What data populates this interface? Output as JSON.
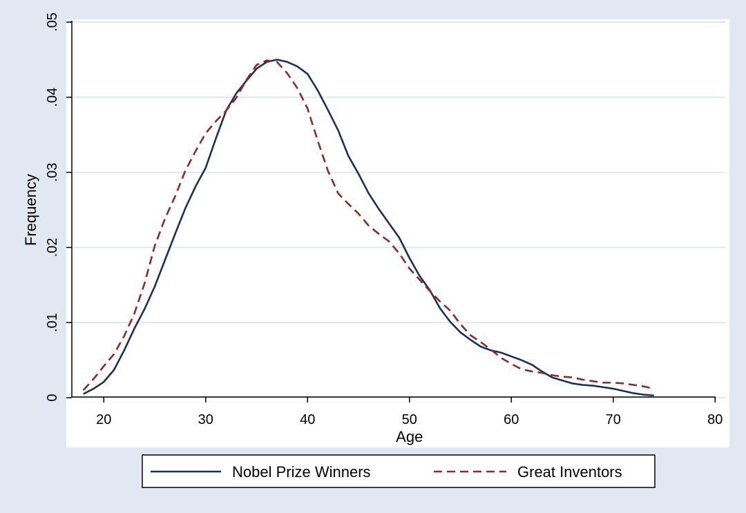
{
  "chart_data": {
    "type": "line",
    "title": "",
    "xlabel": "Age",
    "ylabel": "Frequency",
    "xlim": [
      17,
      81
    ],
    "ylim": [
      0,
      0.05
    ],
    "xticks": [
      20,
      30,
      40,
      50,
      60,
      70,
      80
    ],
    "xtick_labels": [
      "20",
      "30",
      "40",
      "50",
      "60",
      "70",
      "80"
    ],
    "yticks": [
      0,
      0.01,
      0.02,
      0.03,
      0.04,
      0.05
    ],
    "ytick_labels": [
      "0",
      ".01",
      ".02",
      ".03",
      ".04",
      ".05"
    ],
    "grid": true,
    "legend_position": "bottom",
    "series": [
      {
        "name": "Nobel Prize Winners",
        "color": "#1a2f5a",
        "dash": "solid",
        "x": [
          18,
          19,
          20,
          21,
          22,
          23,
          24,
          25,
          26,
          27,
          28,
          29,
          30,
          31,
          32,
          33,
          34,
          35,
          36,
          37,
          38,
          39,
          40,
          41,
          42,
          43,
          44,
          45,
          46,
          47,
          48,
          49,
          50,
          51,
          52,
          53,
          54,
          55,
          56,
          57,
          58,
          59,
          60,
          61,
          62,
          63,
          64,
          65,
          66,
          67,
          68,
          69,
          70,
          71,
          72,
          73,
          74
        ],
        "values": [
          0.0005,
          0.0012,
          0.0021,
          0.0037,
          0.0063,
          0.0092,
          0.0118,
          0.0148,
          0.0183,
          0.0218,
          0.0252,
          0.0281,
          0.0306,
          0.0345,
          0.0382,
          0.0405,
          0.0422,
          0.0438,
          0.0447,
          0.045,
          0.0447,
          0.0441,
          0.0431,
          0.0409,
          0.0383,
          0.0356,
          0.0322,
          0.0298,
          0.0272,
          0.0251,
          0.0232,
          0.0213,
          0.0186,
          0.0162,
          0.0143,
          0.0119,
          0.0101,
          0.0087,
          0.0077,
          0.0068,
          0.0063,
          0.006,
          0.0055,
          0.005,
          0.0044,
          0.0035,
          0.0027,
          0.0023,
          0.0019,
          0.0017,
          0.0016,
          0.0014,
          0.0012,
          0.0009,
          0.0006,
          0.0004,
          0.0003
        ]
      },
      {
        "name": "Great Inventors",
        "color": "#8b2a2a",
        "dash": "dashed",
        "x": [
          18,
          19,
          20,
          21,
          22,
          23,
          24,
          25,
          26,
          27,
          28,
          29,
          30,
          31,
          32,
          33,
          34,
          35,
          36,
          37,
          38,
          39,
          40,
          41,
          42,
          43,
          44,
          45,
          46,
          47,
          48,
          49,
          50,
          51,
          52,
          53,
          54,
          55,
          56,
          57,
          58,
          59,
          60,
          61,
          62,
          63,
          64,
          65,
          66,
          67,
          68,
          69,
          70,
          71,
          72,
          73,
          74
        ],
        "values": [
          0.001,
          0.0025,
          0.0042,
          0.0058,
          0.0082,
          0.0112,
          0.0152,
          0.0202,
          0.0238,
          0.0268,
          0.0302,
          0.0328,
          0.0352,
          0.0368,
          0.0382,
          0.0399,
          0.0423,
          0.0443,
          0.0449,
          0.0447,
          0.0432,
          0.0412,
          0.0385,
          0.0342,
          0.0302,
          0.0272,
          0.0258,
          0.0245,
          0.0229,
          0.0218,
          0.0208,
          0.0192,
          0.0172,
          0.0157,
          0.0142,
          0.0128,
          0.0116,
          0.0098,
          0.0083,
          0.0074,
          0.0064,
          0.0053,
          0.0045,
          0.0038,
          0.0035,
          0.0033,
          0.003,
          0.0028,
          0.0027,
          0.0024,
          0.0022,
          0.002,
          0.002,
          0.0019,
          0.0017,
          0.0015,
          0.0012
        ]
      }
    ]
  }
}
